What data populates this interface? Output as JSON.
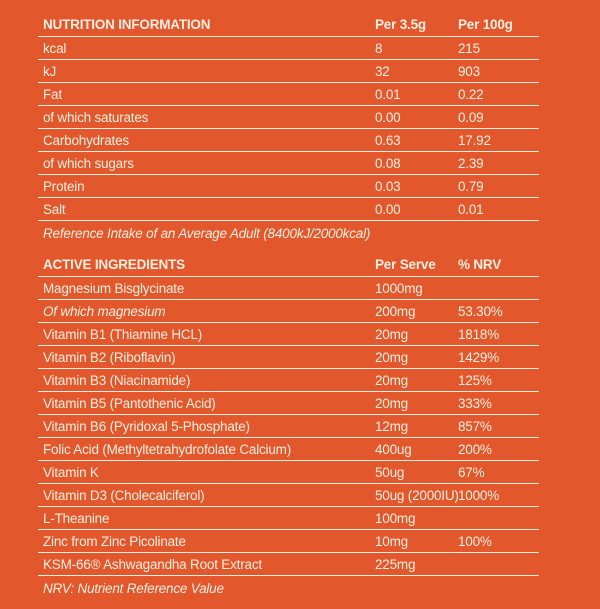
{
  "colors": {
    "background": "#E2572B",
    "text": "#F7EFE1"
  },
  "nutrition_table": {
    "title": "NUTRITION INFORMATION",
    "columns": [
      "Per 3.5g",
      "Per 100g"
    ],
    "rows": [
      {
        "label": "kcal",
        "per_35g": "8",
        "per_100g": "215"
      },
      {
        "label": "kJ",
        "per_35g": "32",
        "per_100g": "903"
      },
      {
        "label": "Fat",
        "per_35g": "0.01",
        "per_100g": "0.22"
      },
      {
        "label": "of which saturates",
        "per_35g": "0.00",
        "per_100g": "0.09"
      },
      {
        "label": "Carbohydrates",
        "per_35g": "0.63",
        "per_100g": "17.92"
      },
      {
        "label": "of which sugars",
        "per_35g": "0.08",
        "per_100g": "2.39"
      },
      {
        "label": "Protein",
        "per_35g": "0.03",
        "per_100g": "0.79"
      },
      {
        "label": "Salt",
        "per_35g": "0.00",
        "per_100g": "0.01"
      }
    ],
    "footnote": "Reference Intake of an Average Adult (8400kJ/2000kcal)"
  },
  "active_table": {
    "title": "ACTIVE INGREDIENTS",
    "columns": [
      "Per Serve",
      "% NRV"
    ],
    "rows": [
      {
        "label": "Magnesium Bisglycinate",
        "per_serve": "1000mg",
        "nrv": ""
      },
      {
        "label": "Of which magnesium",
        "per_serve": "200mg",
        "nrv": "53.30%"
      },
      {
        "label": "Vitamin B1 (Thiamine HCL)",
        "per_serve": "20mg",
        "nrv": "1818%"
      },
      {
        "label": "Vitamin B2 (Riboflavin)",
        "per_serve": "20mg",
        "nrv": "1429%"
      },
      {
        "label": "Vitamin B3 (Niacinamide)",
        "per_serve": "20mg",
        "nrv": "125%"
      },
      {
        "label": "Vitamin B5 (Pantothenic Acid)",
        "per_serve": "20mg",
        "nrv": "333%"
      },
      {
        "label": "Vitamin B6 (Pyridoxal 5-Phosphate)",
        "per_serve": "12mg",
        "nrv": "857%"
      },
      {
        "label": "Folic Acid (Methyltetrahydrofolate Calcium)",
        "per_serve": "400ug",
        "nrv": "200%"
      },
      {
        "label": "Vitamin K",
        "per_serve": "50ug",
        "nrv": "67%"
      },
      {
        "label": "Vitamin D3 (Cholecalciferol)",
        "per_serve": "50ug (2000IU)",
        "nrv": "1000%"
      },
      {
        "label": "L-Theanine",
        "per_serve": "100mg",
        "nrv": ""
      },
      {
        "label": "Zinc from Zinc Picolinate",
        "per_serve": "10mg",
        "nrv": "100%"
      },
      {
        "label": "KSM-66® Ashwagandha Root Extract",
        "per_serve": "225mg",
        "nrv": ""
      }
    ],
    "footnote": "NRV: Nutrient Reference Value"
  }
}
